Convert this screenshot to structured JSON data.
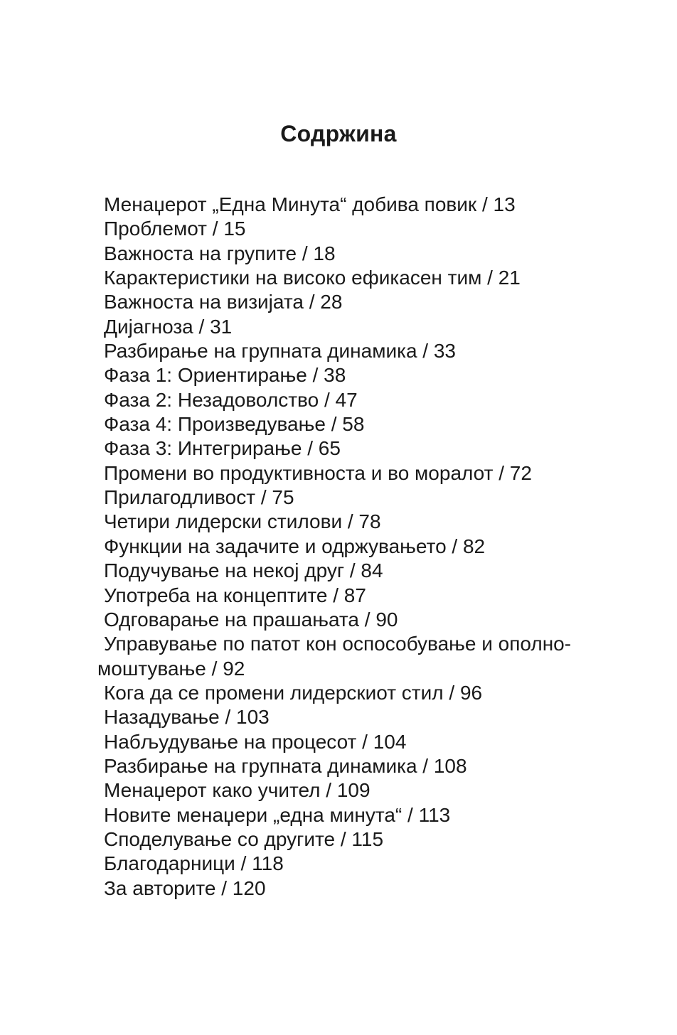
{
  "title": "Содржина",
  "entries": [
    {
      "text": "Менаџерот „Една Минута“ добива повик / 13"
    },
    {
      "text": "Проблемот / 15"
    },
    {
      "text": "Важноста на групите / 18"
    },
    {
      "text": "Карактеристики на високо ефикасен тим / 21"
    },
    {
      "text": "Важноста на визијата / 28"
    },
    {
      "text": "Дијагноза / 31"
    },
    {
      "text": "Разбирање на групната динамика / 33"
    },
    {
      "text": "Фаза 1: Ориентирање / 38"
    },
    {
      "text": "Фаза 2: Незадоволство / 47"
    },
    {
      "text": "Фаза 4: Произведување / 58"
    },
    {
      "text": "Фаза 3: Интегрирање / 65"
    },
    {
      "text": "Промени во продуктивноста и во моралот / 72"
    },
    {
      "text": "Прилагодливост / 75"
    },
    {
      "text": "Четири лидерски стилови / 78"
    },
    {
      "text": "Функции на задачите и одржувањето / 82"
    },
    {
      "text": "Подучување на некој друг / 84"
    },
    {
      "text": "Употреба на концептите / 87"
    },
    {
      "text": "Одговарање на прашањата / 90"
    },
    {
      "text": "Управување по патот кон оспособување и ополно-",
      "continuation": "моштување / 92"
    },
    {
      "text": "Кога да се промени лидерскиот стил / 96"
    },
    {
      "text": "Назадување / 103"
    },
    {
      "text": "Набљудување на процесот / 104"
    },
    {
      "text": "Разбирање на групната динамика / 108"
    },
    {
      "text": "Менаџерот како учител / 109"
    },
    {
      "text": "Новите менаџери „една минута“ / 113"
    },
    {
      "text": "Споделување со другите / 115"
    },
    {
      "text": "Благодарници / 118"
    },
    {
      "text": "За авторите / 120"
    }
  ]
}
